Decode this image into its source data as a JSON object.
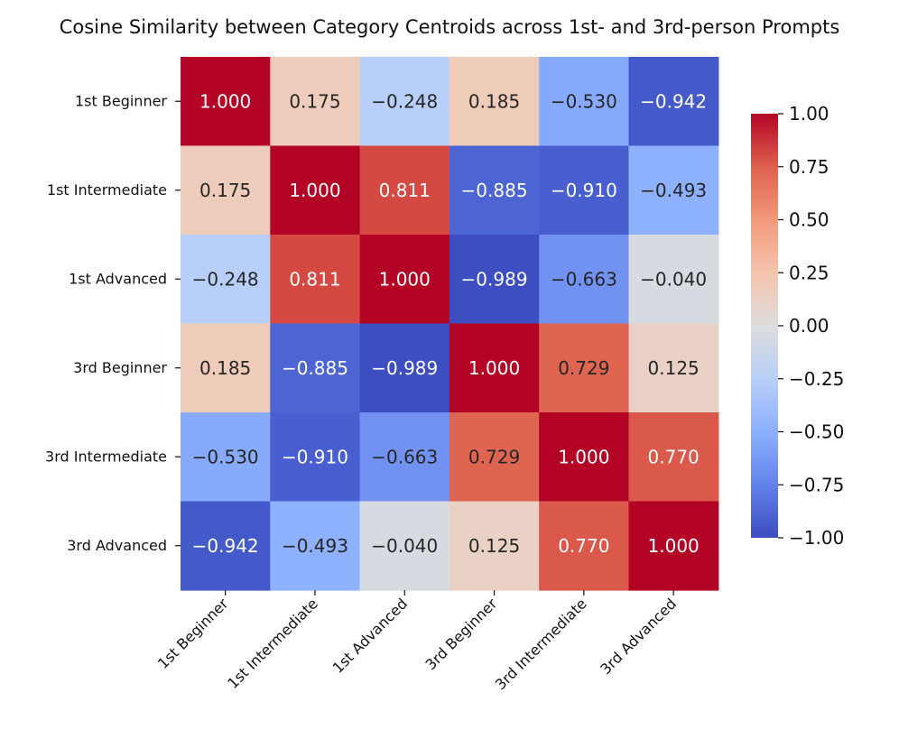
{
  "chart_data": {
    "type": "heatmap",
    "title": "Cosine Similarity between Category Centroids across 1st- and 3rd-person Prompts",
    "row_labels": [
      "1st Beginner",
      "1st Intermediate",
      "1st Advanced",
      "3rd Beginner",
      "3rd Intermediate",
      "3rd Advanced"
    ],
    "col_labels": [
      "1st Beginner",
      "1st Intermediate",
      "1st Advanced",
      "3rd Beginner",
      "3rd Intermediate",
      "3rd Advanced"
    ],
    "values": [
      [
        1.0,
        0.175,
        -0.248,
        0.185,
        -0.53,
        -0.942
      ],
      [
        0.175,
        1.0,
        0.811,
        -0.885,
        -0.91,
        -0.493
      ],
      [
        -0.248,
        0.811,
        1.0,
        -0.989,
        -0.663,
        -0.04
      ],
      [
        0.185,
        -0.885,
        -0.989,
        1.0,
        0.729,
        0.125
      ],
      [
        -0.53,
        -0.91,
        -0.663,
        0.729,
        1.0,
        0.77
      ],
      [
        -0.942,
        -0.493,
        -0.04,
        0.125,
        0.77,
        1.0
      ]
    ],
    "annotation_format": "3 decimals",
    "colormap": "coolwarm",
    "vmin": -1.0,
    "vmax": 1.0,
    "colorbar_ticks": [
      "1.00",
      "0.75",
      "0.50",
      "0.25",
      "0.00",
      "-0.25",
      "-0.50",
      "-0.75",
      "-1.00"
    ],
    "colorbar_tick_values": [
      1.0,
      0.75,
      0.5,
      0.25,
      0.0,
      -0.25,
      -0.5,
      -0.75,
      -1.0
    ],
    "xlabel": "",
    "ylabel": "",
    "x_tick_rotation": "45 degrees"
  }
}
